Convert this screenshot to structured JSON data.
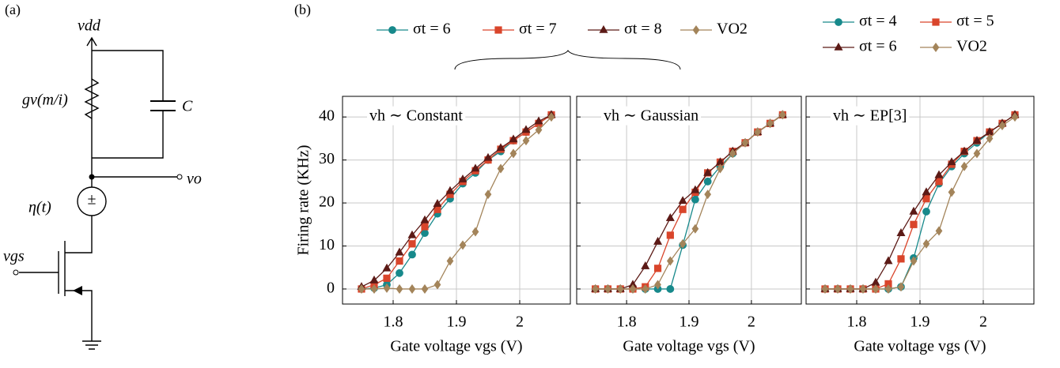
{
  "panel_labels": [
    "(a)",
    "(b)"
  ],
  "circuit": {
    "labels": [
      "vdd",
      "gv(m/i)",
      "C",
      "vo",
      "η(t)",
      "vgs"
    ]
  },
  "chart_data": [
    {
      "type": "line",
      "title": "vh ∼ Constant",
      "xlabel": "Gate voltage vgs (V)",
      "ylabel": "Firing rate (KHz)",
      "x": [
        1.75,
        1.77,
        1.79,
        1.81,
        1.83,
        1.85,
        1.87,
        1.89,
        1.91,
        1.93,
        1.95,
        1.97,
        1.99,
        2.01,
        2.03,
        2.05
      ],
      "xlim": [
        1.72,
        2.08
      ],
      "ylim": [
        -3.5,
        44.8
      ],
      "xticks": [
        1.8,
        1.9,
        2
      ],
      "yticks": [
        0,
        10,
        20,
        30,
        40
      ],
      "grid": true,
      "show_ytick_labels": true,
      "series": [
        {
          "name": "σt = 6",
          "color": "#17898b",
          "marker": "circle",
          "values": [
            0,
            0.2,
            1,
            3.7,
            8,
            13,
            17.5,
            21,
            24.5,
            27,
            30,
            32,
            34.5,
            36.5,
            38.5,
            40.5
          ]
        },
        {
          "name": "σt = 7",
          "color": "#d9452b",
          "marker": "square",
          "values": [
            0,
            1,
            2.5,
            6.5,
            10.5,
            14.5,
            18.5,
            22,
            25,
            27.5,
            30,
            32.5,
            34.5,
            36.5,
            38.5,
            40.5
          ]
        },
        {
          "name": "σt = 8",
          "color": "#5c1a16",
          "marker": "triangle",
          "values": [
            0.5,
            2,
            4.8,
            8.5,
            12.5,
            16,
            19.8,
            22.8,
            25.5,
            28,
            30.5,
            32.8,
            34.8,
            37,
            39,
            40.5
          ]
        },
        {
          "name": "VO2",
          "color": "#a3845a",
          "marker": "diamond",
          "values": [
            0,
            0,
            0.2,
            0,
            0,
            0,
            1,
            6.5,
            10.2,
            13.3,
            22,
            28,
            31.5,
            34.5,
            37,
            40
          ]
        }
      ]
    },
    {
      "type": "line",
      "title": "vh ∼ Gaussian",
      "xlabel": "Gate voltage vgs (V)",
      "x": [
        1.75,
        1.77,
        1.79,
        1.81,
        1.83,
        1.85,
        1.87,
        1.89,
        1.91,
        1.93,
        1.95,
        1.97,
        1.99,
        2.01,
        2.03,
        2.05
      ],
      "xlim": [
        1.72,
        2.08
      ],
      "ylim": [
        -3.5,
        44.8
      ],
      "xticks": [
        1.8,
        1.9,
        2
      ],
      "yticks": [
        0,
        10,
        20,
        30,
        40
      ],
      "grid": true,
      "show_ytick_labels": false,
      "series": [
        {
          "color": "#17898b",
          "marker": "circle",
          "values": [
            0,
            0,
            0,
            0,
            0,
            0,
            0,
            10.2,
            20.8,
            25,
            28.5,
            31.5,
            34,
            36.5,
            38.5,
            40.5
          ]
        },
        {
          "color": "#d9452b",
          "marker": "square",
          "values": [
            0,
            0,
            0,
            0,
            0.5,
            4.8,
            12.5,
            18.5,
            22.5,
            27,
            29.5,
            32,
            34,
            36.5,
            38.5,
            40.5
          ]
        },
        {
          "color": "#5c1a16",
          "marker": "triangle",
          "values": [
            0,
            0,
            0,
            1,
            5.3,
            11,
            16.5,
            20.5,
            23,
            27,
            29.5,
            32,
            34,
            36.5,
            38.5,
            40.5
          ]
        },
        {
          "color": "#a3845a",
          "marker": "diamond",
          "values": [
            0,
            0,
            0,
            0,
            0,
            1,
            6.5,
            10.5,
            14,
            22,
            28,
            31.5,
            34,
            36.5,
            38.5,
            40.5
          ]
        }
      ]
    },
    {
      "type": "line",
      "title": "vh ∼ EP[3]",
      "xlabel": "Gate voltage vgs (V)",
      "x": [
        1.75,
        1.77,
        1.79,
        1.81,
        1.83,
        1.85,
        1.87,
        1.89,
        1.91,
        1.93,
        1.95,
        1.97,
        1.99,
        2.01,
        2.03,
        2.05
      ],
      "xlim": [
        1.72,
        2.08
      ],
      "ylim": [
        -3.5,
        44.8
      ],
      "xticks": [
        1.8,
        1.9,
        2
      ],
      "yticks": [
        0,
        10,
        20,
        30,
        40
      ],
      "grid": true,
      "show_ytick_labels": false,
      "series": [
        {
          "name": "σt = 4",
          "color": "#17898b",
          "marker": "circle",
          "values": [
            0,
            0,
            0,
            0,
            0,
            0,
            0.5,
            7.2,
            18,
            24.5,
            28.5,
            31.5,
            34,
            36.5,
            38.5,
            40.5
          ]
        },
        {
          "name": "σt = 5",
          "color": "#d9452b",
          "marker": "square",
          "values": [
            0,
            0,
            0,
            0,
            0,
            1.2,
            7,
            15,
            21,
            25,
            29,
            32,
            34.5,
            36.5,
            38.5,
            40.5
          ]
        },
        {
          "name": "σt = 6",
          "color": "#5c1a16",
          "marker": "triangle",
          "values": [
            0,
            0,
            0,
            0,
            1.5,
            6.5,
            13,
            18,
            22.5,
            26.5,
            29.5,
            32,
            34.5,
            36.5,
            38.5,
            40.5
          ]
        },
        {
          "name": "VO2",
          "color": "#a3845a",
          "marker": "diamond",
          "values": [
            0,
            0,
            0,
            0,
            0,
            0,
            0.5,
            6.5,
            10.5,
            13.5,
            22.5,
            28.5,
            31.5,
            35,
            38,
            40
          ]
        }
      ]
    }
  ]
}
